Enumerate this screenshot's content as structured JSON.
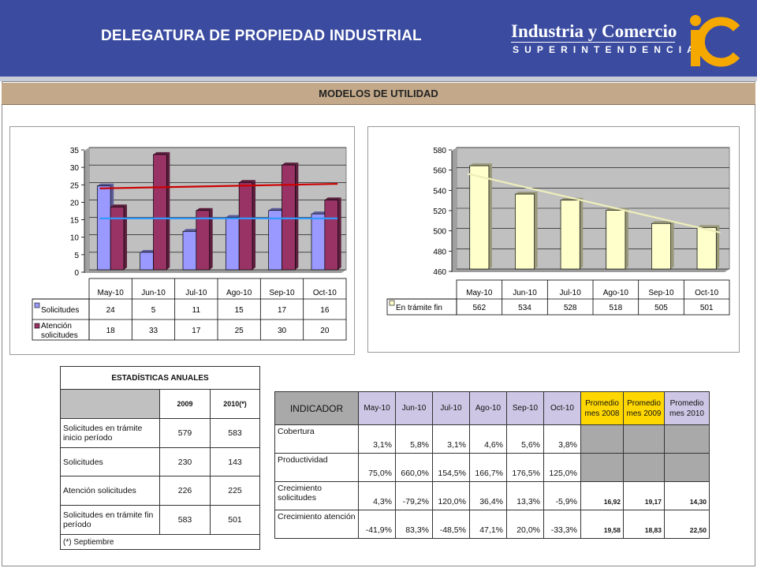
{
  "header": {
    "title": "DELEGATURA DE PROPIEDAD INDUSTRIAL",
    "logo_main": "Industria y Comercio",
    "logo_sub": "SUPERINTENDENCIA"
  },
  "panel": {
    "title": "MODELOS DE UTILIDAD"
  },
  "colors": {
    "header_bg": "#3a4ba0",
    "panel_head": "#c3a98a",
    "solicitudes": "#9999ff",
    "atencion": "#993366",
    "tramite": "#ffffcc",
    "trend_red": "#cc0000",
    "trend_blue": "#3399ff",
    "plot_bg": "#c0c0c0"
  },
  "chart_data": [
    {
      "type": "bar",
      "categories": [
        "May-10",
        "Jun-10",
        "Jul-10",
        "Ago-10",
        "Sep-10",
        "Oct-10"
      ],
      "series": [
        {
          "name": "Solicitudes",
          "values": [
            24,
            5,
            11,
            15,
            17,
            16
          ],
          "color": "#9999ff"
        },
        {
          "name": "Atención solicitudes",
          "values": [
            18,
            33,
            17,
            25,
            30,
            20
          ],
          "color": "#993366"
        }
      ],
      "trendlines": [
        {
          "series": "Atención solicitudes",
          "start": 23.3,
          "end": 24.6,
          "color": "#cc0000"
        },
        {
          "series": "Solicitudes",
          "start": 14.7,
          "end": 14.7,
          "color": "#3399ff"
        }
      ],
      "yticks": [
        0,
        5,
        10,
        15,
        20,
        25,
        30,
        35
      ],
      "ylim": [
        0,
        35
      ],
      "grid": true,
      "data_table": true
    },
    {
      "type": "bar",
      "categories": [
        "May-10",
        "Jun-10",
        "Jul-10",
        "Ago-10",
        "Sep-10",
        "Oct-10"
      ],
      "series": [
        {
          "name": "En trámite fin",
          "values": [
            562,
            534,
            528,
            518,
            505,
            501
          ],
          "color": "#ffffcc"
        }
      ],
      "trendlines": [
        {
          "series": "En trámite fin",
          "start": 554,
          "end": 496,
          "color": "#eeeebb"
        }
      ],
      "yticks": [
        460,
        480,
        500,
        520,
        540,
        560,
        580
      ],
      "ylim": [
        460,
        580
      ],
      "grid": true,
      "data_table": true
    }
  ],
  "annual": {
    "title": "ESTADÍSTICAS ANUALES",
    "col_2009": "2009",
    "col_2010": "2010(*)",
    "rows": [
      {
        "label": "Solicitudes en trámite inicio período",
        "v2009": "579",
        "v2010": "583"
      },
      {
        "label": "Solicitudes",
        "v2009": "230",
        "v2010": "143"
      },
      {
        "label": "Atención solicitudes",
        "v2009": "226",
        "v2010": "225"
      },
      {
        "label": "Solicitudes en trámite fin período",
        "v2009": "583",
        "v2010": "501"
      }
    ],
    "footnote": "(*) Septiembre"
  },
  "indicators": {
    "header": "INDICADOR",
    "months": [
      "May-10",
      "Jun-10",
      "Jul-10",
      "Ago-10",
      "Sep-10",
      "Oct-10"
    ],
    "prom2008": "Promedio mes 2008",
    "prom2009": "Promedio mes 2009",
    "prom2010": "Promedio mes 2010",
    "rows": [
      {
        "label": "Cobertura",
        "values": [
          "3,1%",
          "5,8%",
          "3,1%",
          "4,6%",
          "5,6%",
          "3,8%"
        ],
        "proms": [
          "",
          "",
          ""
        ]
      },
      {
        "label": "Productividad",
        "values": [
          "75,0%",
          "660,0%",
          "154,5%",
          "166,7%",
          "176,5%",
          "125,0%"
        ],
        "proms": [
          "",
          "",
          ""
        ]
      },
      {
        "label": "Crecimiento solicitudes",
        "values": [
          "4,3%",
          "-79,2%",
          "120,0%",
          "36,4%",
          "13,3%",
          "-5,9%"
        ],
        "proms": [
          "16,92",
          "19,17",
          "14,30"
        ]
      },
      {
        "label": "Crecimiento atención",
        "values": [
          "-41,9%",
          "83,3%",
          "-48,5%",
          "47,1%",
          "20,0%",
          "-33,3%"
        ],
        "proms": [
          "19,58",
          "18,83",
          "22,50"
        ]
      }
    ]
  }
}
